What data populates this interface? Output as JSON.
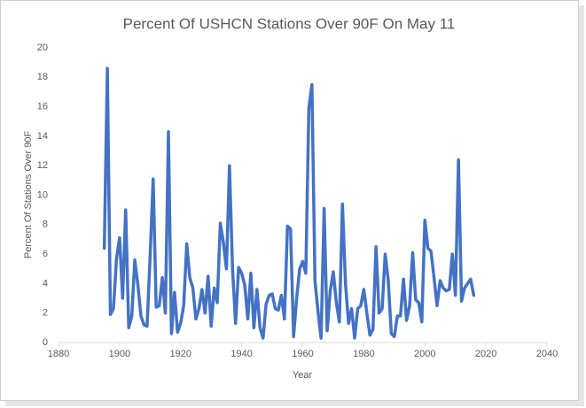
{
  "chart_data": {
    "type": "line",
    "title": "Percent Of USHCN Stations Over 90F On May 11",
    "x_label": "Year",
    "y_label": "Percent Of Stations Over 90F",
    "color": "#4472c4",
    "x": [
      1895,
      1896,
      1897,
      1898,
      1899,
      1900,
      1901,
      1902,
      1903,
      1904,
      1905,
      1906,
      1907,
      1908,
      1909,
      1910,
      1911,
      1912,
      1913,
      1914,
      1915,
      1916,
      1917,
      1918,
      1919,
      1920,
      1921,
      1922,
      1923,
      1924,
      1925,
      1926,
      1927,
      1928,
      1929,
      1930,
      1931,
      1932,
      1933,
      1934,
      1935,
      1936,
      1937,
      1938,
      1939,
      1940,
      1941,
      1942,
      1943,
      1944,
      1945,
      1946,
      1947,
      1948,
      1949,
      1950,
      1951,
      1952,
      1953,
      1954,
      1955,
      1956,
      1957,
      1958,
      1959,
      1960,
      1961,
      1962,
      1963,
      1964,
      1965,
      1966,
      1967,
      1968,
      1969,
      1970,
      1971,
      1972,
      1973,
      1974,
      1975,
      1976,
      1977,
      1978,
      1979,
      1980,
      1981,
      1982,
      1983,
      1984,
      1985,
      1986,
      1987,
      1988,
      1989,
      1990,
      1991,
      1992,
      1993,
      1994,
      1995,
      1996,
      1997,
      1998,
      1999,
      2000,
      2001,
      2002,
      2003,
      2004,
      2005,
      2006,
      2007,
      2008,
      2009,
      2010,
      2011,
      2012,
      2013,
      2014,
      2015,
      2016
    ],
    "values": [
      6.4,
      18.6,
      1.9,
      2.3,
      5.7,
      7.1,
      3.0,
      9.0,
      1.0,
      1.8,
      5.6,
      3.9,
      1.8,
      1.2,
      1.1,
      5.8,
      11.1,
      2.4,
      2.5,
      4.4,
      2.0,
      14.3,
      0.6,
      3.4,
      0.7,
      1.3,
      2.5,
      6.7,
      4.4,
      3.7,
      1.6,
      2.3,
      3.6,
      2.0,
      4.5,
      1.1,
      3.7,
      2.7,
      8.1,
      6.8,
      5.0,
      12.0,
      5.0,
      1.3,
      5.1,
      4.7,
      3.9,
      1.6,
      4.7,
      1.0,
      3.6,
      1.0,
      0.3,
      2.6,
      3.2,
      3.3,
      2.3,
      2.2,
      3.2,
      1.6,
      7.9,
      7.7,
      0.4,
      3.0,
      5.0,
      5.5,
      4.7,
      15.9,
      17.5,
      4.2,
      2.1,
      0.3,
      9.1,
      0.8,
      3.5,
      4.8,
      2.7,
      1.4,
      9.4,
      4.0,
      1.3,
      2.3,
      0.3,
      2.3,
      2.5,
      3.6,
      2.0,
      0.5,
      0.9,
      6.5,
      2.0,
      2.3,
      6.0,
      4.2,
      0.6,
      0.4,
      1.8,
      1.8,
      4.3,
      1.5,
      2.5,
      6.1,
      2.9,
      2.7,
      1.4,
      8.3,
      6.4,
      6.2,
      4.4,
      2.5,
      4.2,
      3.7,
      3.5,
      3.6,
      6.0,
      3.2,
      12.4,
      2.8,
      3.7,
      4.0,
      4.3,
      3.2
    ],
    "xlim": [
      1880,
      2040
    ],
    "xticks": [
      1880,
      1900,
      1920,
      1940,
      1960,
      1980,
      2000,
      2020,
      2040
    ],
    "ylim": [
      0,
      20
    ],
    "yticks": [
      0,
      2,
      4,
      6,
      8,
      10,
      12,
      14,
      16,
      18,
      20
    ]
  }
}
